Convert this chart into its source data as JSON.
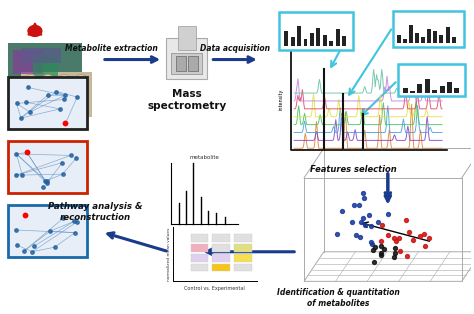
{
  "title": "",
  "bg_color": "#ffffff",
  "arrow_color": "#1a3a8c",
  "cyan_box_color": "#00bcd4",
  "red_box_color": "#cc0000",
  "black_box_color": "#222222",
  "blue_box_color": "#1565c0",
  "text_color_dark": "#111111",
  "label_metabolite_extraction": "Metabolite extraction",
  "label_data_acquisition": "Data acquisition",
  "label_mass_spec": "Mass\nspectrometry",
  "label_features_selection": "Features selection",
  "label_identification": "Identification & quantitation\nof metabolites",
  "label_pathway": "Pathway analysis &\nreconstruction",
  "cyan_color": "#40c4e0",
  "pathway_box_colors": [
    "#222222",
    "#cc2200",
    "#1a6aaa"
  ]
}
